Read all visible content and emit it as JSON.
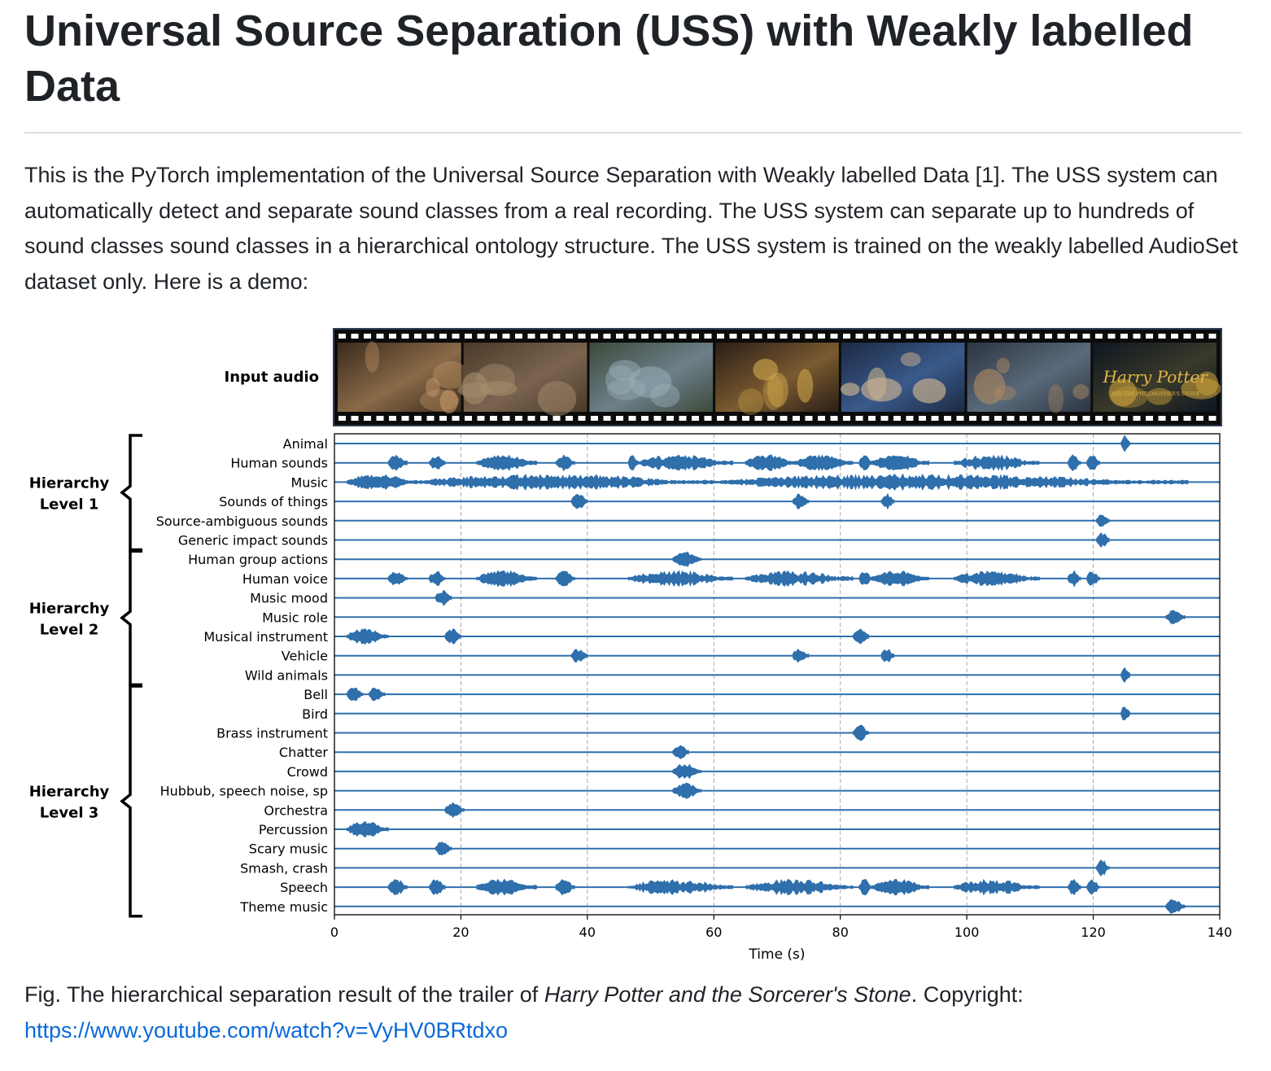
{
  "page": {
    "title": "Universal Source Separation (USS) with Weakly labelled Data",
    "intro": "This is the PyTorch implementation of the Universal Source Separation with Weakly labelled Data [1]. The USS system can automatically detect and separate sound classes from a real recording. The USS system can separate up to hundreds of sound classes sound classes in a hierarchical ontology structure. The USS system is trained on the weakly labelled AudioSet dataset only. Here is a demo:",
    "caption_prefix": "Fig. The hierarchical separation result of the trailer of ",
    "caption_italic": "Harry Potter and the Sorcerer's Stone",
    "caption_suffix": ". Copyright:",
    "caption_link": "https://www.youtube.com/watch?v=VyHV0BRtdxo"
  },
  "chart_data": {
    "type": "line",
    "input_label": "Input audio",
    "filmstrip_frames": 7,
    "filmstrip_logo_text": "Harry Potter",
    "filmstrip_logo_subtext": "AND THE PHILOSOPHER'S STONE",
    "xlabel": "Time (s)",
    "xlim": [
      0,
      140
    ],
    "x_ticks": [
      0,
      20,
      40,
      60,
      80,
      100,
      120,
      140
    ],
    "grid_x": [
      20,
      40,
      60,
      80,
      100,
      120
    ],
    "waveform_color": "#2e6fac",
    "groups": [
      {
        "label_line1": "Hierarchy",
        "label_line2": "Level 1",
        "first_row": 0,
        "last_row": 5
      },
      {
        "label_line1": "Hierarchy",
        "label_line2": "Level 2",
        "first_row": 6,
        "last_row": 12
      },
      {
        "label_line1": "Hierarchy",
        "label_line2": "Level 3",
        "first_row": 13,
        "last_row": 24
      }
    ],
    "series": [
      {
        "name": "Animal",
        "active": [
          [
            124.4,
            125.8
          ]
        ]
      },
      {
        "name": "Human sounds",
        "active": [
          [
            8.5,
            11.5
          ],
          [
            15,
            17.5
          ],
          [
            22.5,
            32
          ],
          [
            35,
            38
          ],
          [
            46.5,
            48
          ],
          [
            48,
            63
          ],
          [
            65,
            73
          ],
          [
            73,
            82
          ],
          [
            83,
            85
          ],
          [
            85,
            94
          ],
          [
            98,
            111.5
          ],
          [
            116,
            118
          ],
          [
            119,
            121
          ]
        ]
      },
      {
        "name": "Music",
        "active": [
          [
            2,
            13
          ],
          [
            13,
            60
          ],
          [
            60,
            135
          ]
        ]
      },
      {
        "name": "Sounds of things",
        "active": [
          [
            37.5,
            40
          ],
          [
            72.5,
            75
          ],
          [
            86.5,
            88.5
          ]
        ]
      },
      {
        "name": "Source-ambiguous sounds",
        "active": [
          [
            120.5,
            122.5
          ]
        ]
      },
      {
        "name": "Generic impact sounds",
        "active": [
          [
            120.5,
            122.5
          ]
        ]
      },
      {
        "name": "Human group actions",
        "active": [
          [
            53.5,
            58
          ]
        ]
      },
      {
        "name": "Human voice",
        "active": [
          [
            8.5,
            11.5
          ],
          [
            15,
            17.5
          ],
          [
            22.5,
            32
          ],
          [
            35,
            38
          ],
          [
            46.5,
            63
          ],
          [
            65,
            82
          ],
          [
            83,
            85
          ],
          [
            85,
            94
          ],
          [
            98,
            111.5
          ],
          [
            116,
            118
          ],
          [
            119,
            121
          ]
        ]
      },
      {
        "name": "Music mood",
        "active": [
          [
            16,
            18.5
          ]
        ]
      },
      {
        "name": "Music role",
        "active": [
          [
            131.5,
            134.5
          ]
        ]
      },
      {
        "name": "Musical instrument",
        "active": [
          [
            2,
            8.5
          ],
          [
            17.5,
            20
          ],
          [
            82,
            84.5
          ]
        ]
      },
      {
        "name": "Vehicle",
        "active": [
          [
            37.5,
            40
          ],
          [
            72.5,
            75
          ],
          [
            86.5,
            88.5
          ]
        ]
      },
      {
        "name": "Wild animals",
        "active": [
          [
            124.4,
            125.8
          ]
        ]
      },
      {
        "name": "Bell",
        "active": [
          [
            2,
            4.5
          ],
          [
            5.5,
            8
          ]
        ]
      },
      {
        "name": "Bird",
        "active": [
          [
            124.4,
            125.8
          ]
        ]
      },
      {
        "name": "Brass instrument",
        "active": [
          [
            82,
            84.5
          ]
        ]
      },
      {
        "name": "Chatter",
        "active": [
          [
            53.5,
            56
          ]
        ]
      },
      {
        "name": "Crowd",
        "active": [
          [
            53.5,
            58
          ]
        ]
      },
      {
        "name": "Hubbub, speech noise, sp",
        "active": [
          [
            53.5,
            58
          ]
        ]
      },
      {
        "name": "Orchestra",
        "active": [
          [
            17.5,
            20.5
          ]
        ]
      },
      {
        "name": "Percussion",
        "active": [
          [
            2,
            8.5
          ]
        ]
      },
      {
        "name": "Scary music",
        "active": [
          [
            16,
            18.5
          ]
        ]
      },
      {
        "name": "Smash, crash",
        "active": [
          [
            120.5,
            122.5
          ]
        ]
      },
      {
        "name": "Speech",
        "active": [
          [
            8.5,
            11.5
          ],
          [
            15,
            17.5
          ],
          [
            22.5,
            32
          ],
          [
            35,
            38
          ],
          [
            46.5,
            63
          ],
          [
            65,
            82
          ],
          [
            83,
            85
          ],
          [
            85,
            94
          ],
          [
            98,
            111.5
          ],
          [
            116,
            118
          ],
          [
            119,
            121
          ]
        ]
      },
      {
        "name": "Theme music",
        "active": [
          [
            131.5,
            134.5
          ]
        ]
      }
    ]
  }
}
